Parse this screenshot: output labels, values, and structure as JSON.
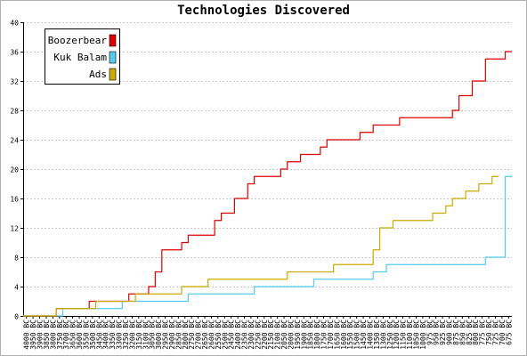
{
  "chart_data": {
    "type": "line",
    "title": "Technologies Discovered",
    "xlabel": "",
    "ylabel": "",
    "ylim": [
      0,
      40
    ],
    "yticks": [
      0,
      4,
      8,
      12,
      16,
      20,
      24,
      28,
      32,
      36,
      40
    ],
    "grid": true,
    "legend_position": "top-left",
    "x": [
      "4000 BC",
      "3950 BC",
      "3900 BC",
      "3850 BC",
      "3800 BC",
      "3750 BC",
      "3700 BC",
      "3650 BC",
      "3600 BC",
      "3550 BC",
      "3500 BC",
      "3450 BC",
      "3400 BC",
      "3350 BC",
      "3300 BC",
      "3250 BC",
      "3200 BC",
      "3150 BC",
      "3100 BC",
      "3050 BC",
      "3000 BC",
      "2950 BC",
      "2900 BC",
      "2850 BC",
      "2800 BC",
      "2750 BC",
      "2700 BC",
      "2650 BC",
      "2600 BC",
      "2550 BC",
      "2500 BC",
      "2450 BC",
      "2400 BC",
      "2350 BC",
      "2300 BC",
      "2250 BC",
      "2200 BC",
      "2150 BC",
      "2100 BC",
      "2050 BC",
      "2000 BC",
      "1950 BC",
      "1900 BC",
      "1850 BC",
      "1800 BC",
      "1750 BC",
      "1700 BC",
      "1650 BC",
      "1600 BC",
      "1550 BC",
      "1500 BC",
      "1450 BC",
      "1400 BC",
      "1350 BC",
      "1300 BC",
      "1250 BC",
      "1200 BC",
      "1150 BC",
      "1100 BC",
      "1050 BC",
      "1000 BC",
      "975 BC",
      "950 BC",
      "925 BC",
      "900 BC",
      "875 BC",
      "850 BC",
      "825 BC",
      "800 BC",
      "775 BC",
      "750 BC",
      "725 BC",
      "700 BC",
      "675 BC"
    ],
    "series": [
      {
        "name": "Boozerbear",
        "color": "#dd0000",
        "values": [
          0,
          0,
          0,
          0,
          0,
          1,
          1,
          1,
          1,
          1,
          2,
          2,
          2,
          2,
          2,
          2,
          3,
          3,
          3,
          4,
          6,
          9,
          9,
          9,
          10,
          11,
          11,
          11,
          11,
          13,
          14,
          14,
          16,
          16,
          18,
          19,
          19,
          19,
          19,
          20,
          21,
          21,
          22,
          22,
          22,
          23,
          24,
          24,
          24,
          24,
          24,
          25,
          25,
          26,
          26,
          26,
          26,
          27,
          27,
          27,
          27,
          27,
          27,
          27,
          27,
          28,
          30,
          30,
          32,
          32,
          35,
          35,
          35,
          36
        ]
      },
      {
        "name": "Kuk Balam",
        "color": "#55ccee",
        "values": [
          0,
          0,
          0,
          0,
          0,
          0,
          1,
          1,
          1,
          1,
          1,
          1,
          1,
          1,
          1,
          2,
          2,
          2,
          2,
          2,
          2,
          2,
          2,
          2,
          2,
          3,
          3,
          3,
          3,
          3,
          3,
          3,
          3,
          3,
          3,
          4,
          4,
          4,
          4,
          4,
          4,
          4,
          4,
          4,
          5,
          5,
          5,
          5,
          5,
          5,
          5,
          5,
          5,
          6,
          6,
          7,
          7,
          7,
          7,
          7,
          7,
          7,
          7,
          7,
          7,
          7,
          7,
          7,
          7,
          7,
          8,
          8,
          8,
          19
        ]
      },
      {
        "name": "Ads",
        "color": "#ccaa00",
        "values": [
          0,
          0,
          0,
          0,
          0,
          1,
          1,
          1,
          1,
          1,
          1,
          2,
          2,
          2,
          2,
          2,
          2,
          3,
          3,
          3,
          3,
          3,
          3,
          3,
          4,
          4,
          4,
          4,
          5,
          5,
          5,
          5,
          5,
          5,
          5,
          5,
          5,
          5,
          5,
          5,
          6,
          6,
          6,
          6,
          6,
          6,
          6,
          7,
          7,
          7,
          7,
          7,
          7,
          9,
          12,
          12,
          13,
          13,
          13,
          13,
          13,
          13,
          14,
          14,
          15,
          16,
          16,
          17,
          17,
          18,
          18,
          19,
          null,
          null
        ]
      }
    ]
  }
}
